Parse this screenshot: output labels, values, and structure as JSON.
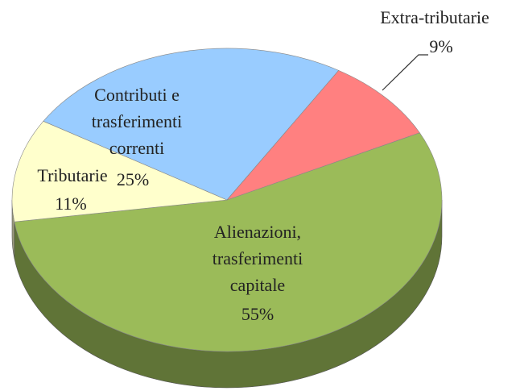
{
  "chart_data": {
    "type": "pie",
    "categories": [
      "Alienazioni,\ntrasferimenti\ncapitale",
      "Tributarie",
      "Contributi e\ntrasferimenti\ncorrenti",
      "Extra-tributarie"
    ],
    "values": [
      55,
      11,
      25,
      9
    ],
    "value_labels": [
      "55%",
      "11%",
      "25%",
      "9%"
    ],
    "colors": [
      "#9bbb59",
      "#ffffcc",
      "#99ccff",
      "#ff8080"
    ]
  }
}
